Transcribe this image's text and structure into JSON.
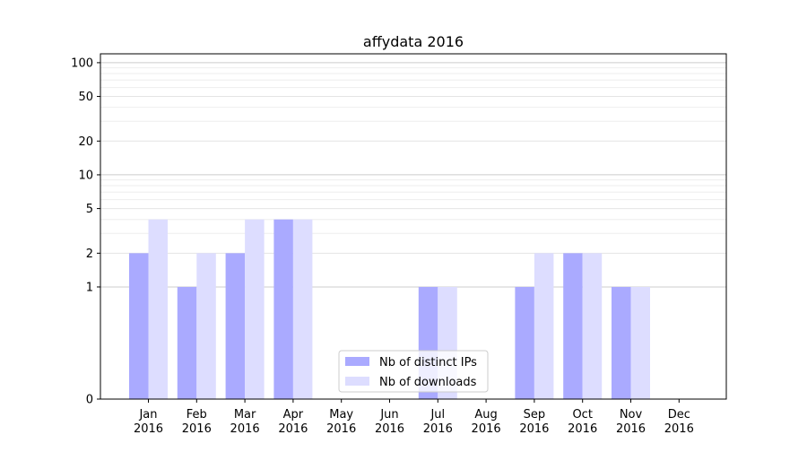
{
  "chart_data": {
    "type": "bar",
    "title": "affydata 2016",
    "xlabel": "",
    "ylabel": "",
    "yscale": "symlog",
    "ylim": [
      0,
      120
    ],
    "grid": "horizontal, major and minor",
    "legend_position": "bottom-center",
    "categories": [
      [
        "Jan",
        "2016"
      ],
      [
        "Feb",
        "2016"
      ],
      [
        "Mar",
        "2016"
      ],
      [
        "Apr",
        "2016"
      ],
      [
        "May",
        "2016"
      ],
      [
        "Jun",
        "2016"
      ],
      [
        "Jul",
        "2016"
      ],
      [
        "Aug",
        "2016"
      ],
      [
        "Sep",
        "2016"
      ],
      [
        "Oct",
        "2016"
      ],
      [
        "Nov",
        "2016"
      ],
      [
        "Dec",
        "2016"
      ]
    ],
    "yticks": [
      0,
      1,
      2,
      5,
      10,
      20,
      50,
      100
    ],
    "series": [
      {
        "name": "Nb of distinct IPs",
        "color": "#aaaaff",
        "values": [
          2,
          1,
          2,
          4,
          0,
          0,
          1,
          0,
          1,
          2,
          1,
          0
        ]
      },
      {
        "name": "Nb of downloads",
        "color": "#ddddff",
        "values": [
          4,
          2,
          4,
          4,
          0,
          0,
          1,
          0,
          2,
          2,
          1,
          0
        ]
      }
    ]
  }
}
